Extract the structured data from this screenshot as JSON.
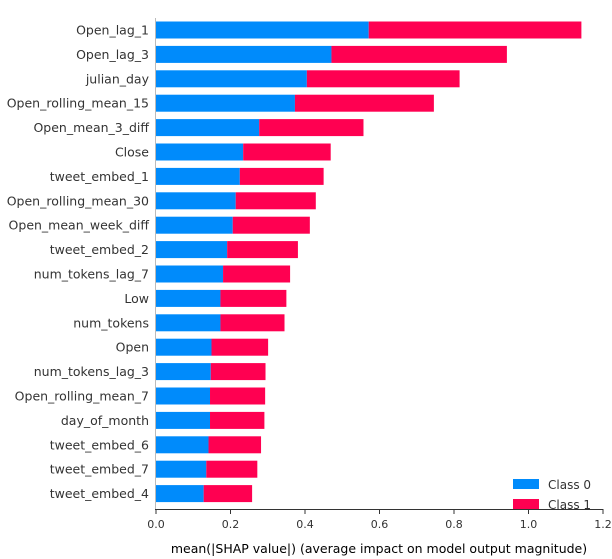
{
  "chart_data": {
    "type": "bar",
    "orientation": "horizontal",
    "stacked": true,
    "title": "",
    "xlabel": "mean(|SHAP value|) (average impact on model output magnitude)",
    "ylabel": "",
    "xlim": [
      0,
      1.2
    ],
    "xticks": [
      "0.0",
      "0.2",
      "0.4",
      "0.6",
      "0.8",
      "1.0",
      "1.2"
    ],
    "grid": false,
    "legend_position": "bottom-right",
    "categories": [
      "Open_lag_1",
      "Open_lag_3",
      "julian_day",
      "Open_rolling_mean_15",
      "Open_mean_3_diff",
      "Close",
      "tweet_embed_1",
      "Open_rolling_mean_30",
      "Open_mean_week_diff",
      "tweet_embed_2",
      "num_tokens_lag_7",
      "Low",
      "num_tokens",
      "Open",
      "num_tokens_lag_3",
      "Open_rolling_mean_7",
      "day_of_month",
      "tweet_embed_6",
      "tweet_embed_7",
      "tweet_embed_4"
    ],
    "series": [
      {
        "name": "Class 0",
        "color": "#008bfb",
        "values": [
          0.571,
          0.471,
          0.405,
          0.373,
          0.277,
          0.234,
          0.225,
          0.214,
          0.206,
          0.191,
          0.18,
          0.173,
          0.173,
          0.149,
          0.147,
          0.145,
          0.145,
          0.141,
          0.135,
          0.128
        ]
      },
      {
        "name": "Class 1",
        "color": "#ff0051",
        "values": [
          0.571,
          0.471,
          0.41,
          0.373,
          0.28,
          0.235,
          0.225,
          0.215,
          0.207,
          0.19,
          0.18,
          0.177,
          0.172,
          0.152,
          0.147,
          0.148,
          0.146,
          0.141,
          0.137,
          0.13
        ]
      }
    ]
  }
}
